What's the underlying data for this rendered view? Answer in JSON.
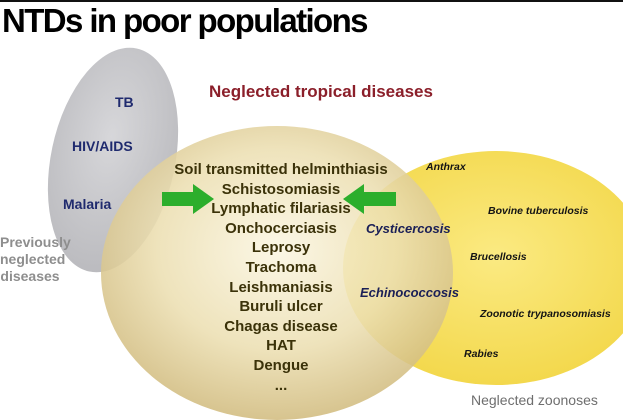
{
  "title": "NTDs in poor populations",
  "previously_neglected": {
    "diseases": [
      "TB",
      "HIV/AIDS",
      "Malaria"
    ],
    "label_lines": [
      "Previously",
      "neglected",
      "diseases"
    ]
  },
  "ntd": {
    "heading": "Neglected tropical diseases",
    "diseases": [
      "Soil transmitted helminthiasis",
      "Schistosomiasis",
      "Lymphatic filariasis",
      "Onchocerciasis",
      "Leprosy",
      "Trachoma",
      "Leishmaniasis",
      "Buruli ulcer",
      "Chagas disease",
      "HAT",
      "Dengue",
      "..."
    ]
  },
  "overlap": {
    "diseases": [
      "Cysticercosis",
      "Echinococcosis"
    ]
  },
  "zoonoses": {
    "label": "Neglected zoonoses",
    "diseases": [
      "Anthrax",
      "Bovine tuberculosis",
      "Brucellosis",
      "Zoonotic trypanosomiasis",
      "Rabies"
    ]
  },
  "colors": {
    "gray_ellipse": "#c9c9cc",
    "tan_ellipse": "#e3d2a0",
    "yellow_ellipse": "#f7df62",
    "arrow": "#2cae2c",
    "ntd_heading": "#8b1f2a",
    "previous_diseases": "#1f2a6e"
  },
  "icons": [
    "arrow-right-icon",
    "arrow-left-icon"
  ]
}
